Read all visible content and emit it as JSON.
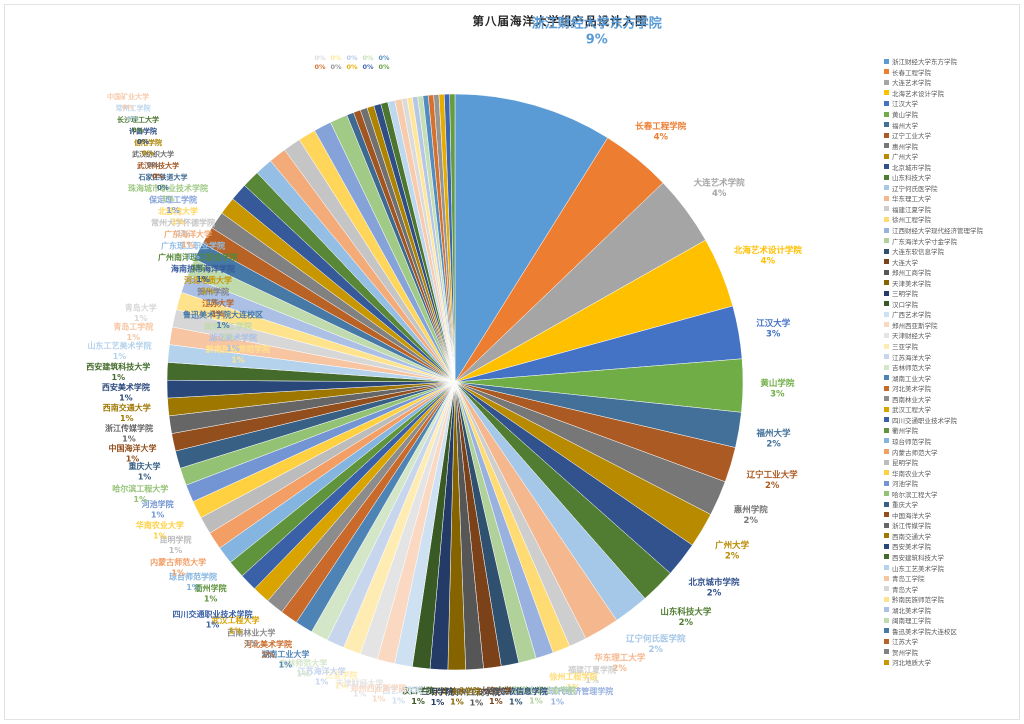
{
  "page": {
    "title": "第八届海洋大学组产品设计入围"
  },
  "palette": {
    "base": [
      "#5B9BD5",
      "#ED7D31",
      "#A5A5A5",
      "#FFC000",
      "#4472C4",
      "#70AD47"
    ],
    "tiers": [
      1,
      0.72,
      1.45,
      0.52,
      1.7,
      0.85,
      1.25,
      0.62,
      1.55,
      0.78,
      1.35,
      0.68,
      1.6,
      0.9,
      1.15
    ],
    "legend_text": "#595959",
    "title_text": "#262626"
  },
  "chart_data": {
    "type": "pie",
    "title": "第八届海洋大学组产品设计入围",
    "unit": "%",
    "legend_position": "right",
    "legend_visible_count": 58,
    "slices": [
      {
        "label": "浙江财经大学东方学院",
        "value": 9
      },
      {
        "label": "长春工程学院",
        "value": 4
      },
      {
        "label": "大连艺术学院",
        "value": 4
      },
      {
        "label": "北海艺术设计学院",
        "value": 4
      },
      {
        "label": "江汉大学",
        "value": 3
      },
      {
        "label": "黄山学院",
        "value": 3
      },
      {
        "label": "福州大学",
        "value": 2
      },
      {
        "label": "辽宁工业大学",
        "value": 2
      },
      {
        "label": "惠州学院",
        "value": 2
      },
      {
        "label": "广州大学",
        "value": 2
      },
      {
        "label": "北京城市学院",
        "value": 2
      },
      {
        "label": "山东科技大学",
        "value": 2
      },
      {
        "label": "辽宁何氏医学院",
        "value": 2
      },
      {
        "label": "华东理工大学",
        "value": 2
      },
      {
        "label": "福建江夏学院",
        "value": 1
      },
      {
        "label": "徐州工程学院",
        "value": 1
      },
      {
        "label": "江西财经大学现代经济管理学院",
        "value": 1
      },
      {
        "label": "广东海洋大学寸金学院",
        "value": 1
      },
      {
        "label": "大连东软信息学院",
        "value": 1
      },
      {
        "label": "大连大学",
        "value": 1
      },
      {
        "label": "郑州工商学院",
        "value": 1
      },
      {
        "label": "天津美术学院",
        "value": 1
      },
      {
        "label": "三明学院",
        "value": 1
      },
      {
        "label": "汉口学院",
        "value": 1
      },
      {
        "label": "广西艺术学院",
        "value": 1
      },
      {
        "label": "郑州西亚斯学院",
        "value": 1
      },
      {
        "label": "天津财经大学",
        "value": 1
      },
      {
        "label": "三亚学院",
        "value": 1
      },
      {
        "label": "江苏海洋大学",
        "value": 1
      },
      {
        "label": "吉林师范大学",
        "value": 1
      },
      {
        "label": "湖南工业大学",
        "value": 1
      },
      {
        "label": "河北美术学院",
        "value": 1
      },
      {
        "label": "西南林业大学",
        "value": 1
      },
      {
        "label": "武汉工程大学",
        "value": 1
      },
      {
        "label": "四川交通职业技术学院",
        "value": 1
      },
      {
        "label": "衢州学院",
        "value": 1
      },
      {
        "label": "琼台师范学院",
        "value": 1
      },
      {
        "label": "内蒙古师范大学",
        "value": 1
      },
      {
        "label": "昆明学院",
        "value": 1
      },
      {
        "label": "华南农业大学",
        "value": 1
      },
      {
        "label": "河池学院",
        "value": 1
      },
      {
        "label": "哈尔滨工程大学",
        "value": 1
      },
      {
        "label": "重庆大学",
        "value": 1
      },
      {
        "label": "中国海洋大学",
        "value": 1
      },
      {
        "label": "浙江传媒学院",
        "value": 1
      },
      {
        "label": "西南交通大学",
        "value": 1
      },
      {
        "label": "西安美术学院",
        "value": 1
      },
      {
        "label": "西安建筑科技大学",
        "value": 1
      },
      {
        "label": "山东工艺美术学院",
        "value": 1
      },
      {
        "label": "青岛工学院",
        "value": 1
      },
      {
        "label": "青岛大学",
        "value": 1
      },
      {
        "label": "黔南民族师范学院",
        "value": 1
      },
      {
        "label": "湖北美术学院",
        "value": 1
      },
      {
        "label": "闽南理工学院",
        "value": 1
      },
      {
        "label": "鲁迅美术学院大连校区",
        "value": 1
      },
      {
        "label": "江苏大学",
        "value": 1
      },
      {
        "label": "贺州学院",
        "value": 1
      },
      {
        "label": "河北地质大学",
        "value": 1
      },
      {
        "label": "海南热带海洋学院",
        "value": 1
      },
      {
        "label": "广州南洋理工职业学院",
        "value": 1
      },
      {
        "label": "广东理工职业学院",
        "value": 1
      },
      {
        "label": "广东海洋大学",
        "value": 1
      },
      {
        "label": "常州大学怀德学院",
        "value": 1
      },
      {
        "label": "北部湾大学",
        "value": 1
      },
      {
        "label": "保定理工学院",
        "value": 1
      },
      {
        "label": "珠海城市职业技术学院",
        "value": 1
      },
      {
        "label": "石家庄铁道大学",
        "value": 0.4
      },
      {
        "label": "武汉科技大学",
        "value": 0.4
      },
      {
        "label": "武汉纺织大学",
        "value": 0.4
      },
      {
        "label": "信阳学院",
        "value": 0.4
      },
      {
        "label": "许昌学院",
        "value": 0.4
      },
      {
        "label": "长沙理工大学",
        "value": 0.4
      },
      {
        "label": "常州工学院",
        "value": 0.4
      },
      {
        "label": "中国矿业大学",
        "value": 0.4
      },
      {
        "label": "",
        "value": 0.3
      },
      {
        "label": "",
        "value": 0.3
      },
      {
        "label": "",
        "value": 0.3
      },
      {
        "label": "",
        "value": 0.3
      },
      {
        "label": "",
        "value": 0.3
      },
      {
        "label": "",
        "value": 0.3
      },
      {
        "label": "",
        "value": 0.3
      },
      {
        "label": "",
        "value": 0.3
      },
      {
        "label": "",
        "value": 0.3
      },
      {
        "label": "",
        "value": 0.3
      }
    ]
  }
}
